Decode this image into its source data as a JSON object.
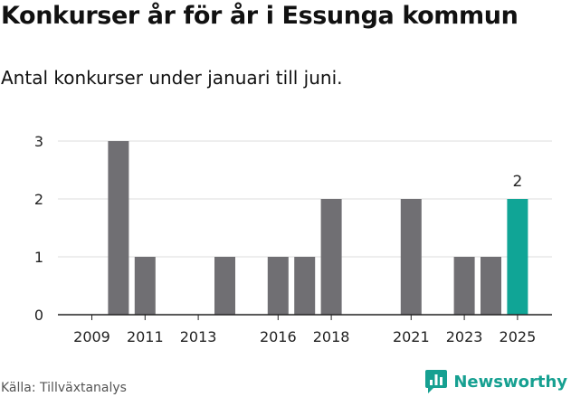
{
  "title": "Konkurser år för år i Essunga kommun",
  "subtitle": "Antal konkurser under januari till juni.",
  "source": "Källa: Tillväxtanalys",
  "brand": {
    "name": "Newsworthy",
    "icon": "bar-chart-speech-bubble-icon"
  },
  "colors": {
    "bar": "#706f73",
    "highlight": "#10a596",
    "grid": "#dddddd",
    "axis": "#222222"
  },
  "chart_data": {
    "type": "bar",
    "categories": [
      2009,
      2010,
      2011,
      2012,
      2013,
      2014,
      2015,
      2016,
      2017,
      2018,
      2019,
      2020,
      2021,
      2022,
      2023,
      2024,
      2025
    ],
    "values": [
      0,
      3,
      1,
      0,
      0,
      1,
      0,
      1,
      1,
      2,
      0,
      0,
      2,
      0,
      1,
      1,
      2
    ],
    "highlight": 2025,
    "data_labels": [
      {
        "x": 2025,
        "text": "2"
      }
    ],
    "x_tick_labels": [
      "2009",
      "2011",
      "2013",
      "2016",
      "2018",
      "2021",
      "2023",
      "2025"
    ],
    "y_tick_labels": [
      "0",
      "1",
      "2",
      "3"
    ],
    "ylim": [
      0,
      3
    ],
    "grid": true,
    "legend": "none"
  }
}
